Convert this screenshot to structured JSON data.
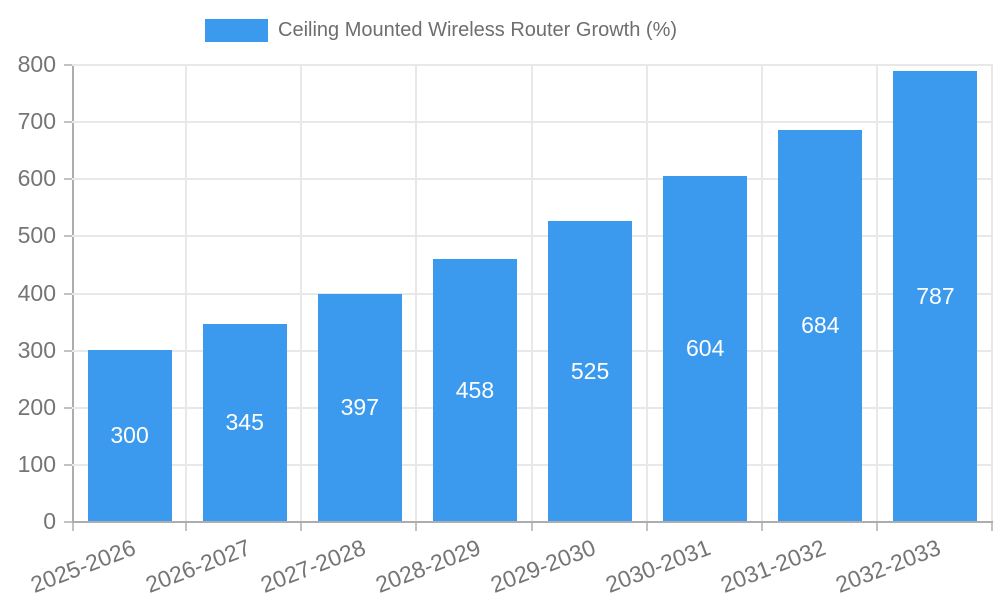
{
  "colors": {
    "background": "#ffffff",
    "bar_fill": "#3b9aee",
    "grid_line": "#e8e8e8",
    "axis_line": "#adadad",
    "tick_mark": "#c2c2c2",
    "axis_text": "#757575",
    "legend_text": "#6e6e6e",
    "bar_label": "#ffffff"
  },
  "chart_data": {
    "type": "bar",
    "title": "Ceiling Mounted Wireless Router Growth (%)",
    "categories": [
      "2025-2026",
      "2026-2027",
      "2027-2028",
      "2028-2029",
      "2029-2030",
      "2030-2031",
      "2031-2032",
      "2032-2033"
    ],
    "values": [
      300,
      345,
      397,
      458,
      525,
      604,
      684,
      787
    ],
    "xlabel": "",
    "ylabel": "",
    "ylim": [
      0,
      800
    ],
    "y_ticks": [
      0,
      100,
      200,
      300,
      400,
      500,
      600,
      700,
      800
    ],
    "grid": true,
    "legend_position": "top-center",
    "bar_label_position": "inside-center",
    "x_label_rotation_deg": -21
  }
}
